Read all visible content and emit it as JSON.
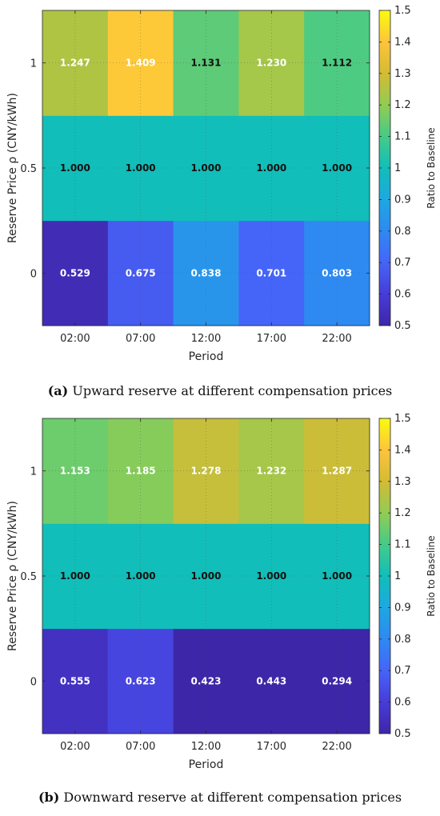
{
  "chart_data": [
    {
      "type": "heatmap",
      "x_categories": [
        "02:00",
        "07:00",
        "12:00",
        "17:00",
        "22:00"
      ],
      "y_categories": [
        "0",
        "0.5",
        "1"
      ],
      "values": [
        [
          0.529,
          0.675,
          0.838,
          0.701,
          0.803
        ],
        [
          1.0,
          1.0,
          1.0,
          1.0,
          1.0
        ],
        [
          1.247,
          1.409,
          1.131,
          1.23,
          1.112
        ]
      ],
      "value_labels": [
        [
          "0.529",
          "0.675",
          "0.838",
          "0.701",
          "0.803"
        ],
        [
          "1.000",
          "1.000",
          "1.000",
          "1.000",
          "1.000"
        ],
        [
          "1.247",
          "1.409",
          "1.131",
          "1.230",
          "1.112"
        ]
      ],
      "xlabel": "Period",
      "ylabel": "Reserve Price ρ (CNY/kWh)",
      "colorbar_label": "Ratio to Baseline",
      "clim": [
        0.5,
        1.5
      ],
      "colorbar_ticks": [
        "0.5",
        "0.6",
        "0.7",
        "0.8",
        "0.9",
        "1",
        "1.1",
        "1.2",
        "1.3",
        "1.4",
        "1.5"
      ],
      "colormap": "parula",
      "grid": true,
      "caption_tag": "(a)",
      "caption_text": " Upward reserve at different compensation prices"
    },
    {
      "type": "heatmap",
      "x_categories": [
        "02:00",
        "07:00",
        "12:00",
        "17:00",
        "22:00"
      ],
      "y_categories": [
        "0",
        "0.5",
        "1"
      ],
      "values": [
        [
          0.555,
          0.623,
          0.423,
          0.443,
          0.294
        ],
        [
          1.0,
          1.0,
          1.0,
          1.0,
          1.0
        ],
        [
          1.153,
          1.185,
          1.278,
          1.232,
          1.287
        ]
      ],
      "value_labels": [
        [
          "0.555",
          "0.623",
          "0.423",
          "0.443",
          "0.294"
        ],
        [
          "1.000",
          "1.000",
          "1.000",
          "1.000",
          "1.000"
        ],
        [
          "1.153",
          "1.185",
          "1.278",
          "1.232",
          "1.287"
        ]
      ],
      "xlabel": "Period",
      "ylabel": "Reserve Price ρ (CNY/kWh)",
      "colorbar_label": "Ratio to Baseline",
      "clim": [
        0.5,
        1.5
      ],
      "colorbar_ticks": [
        "0.5",
        "0.6",
        "0.7",
        "0.8",
        "0.9",
        "1",
        "1.1",
        "1.2",
        "1.3",
        "1.4",
        "1.5"
      ],
      "colormap": "parula",
      "grid": true,
      "caption_tag": "(b)",
      "caption_text": " Downward reserve at different compensation prices"
    }
  ]
}
